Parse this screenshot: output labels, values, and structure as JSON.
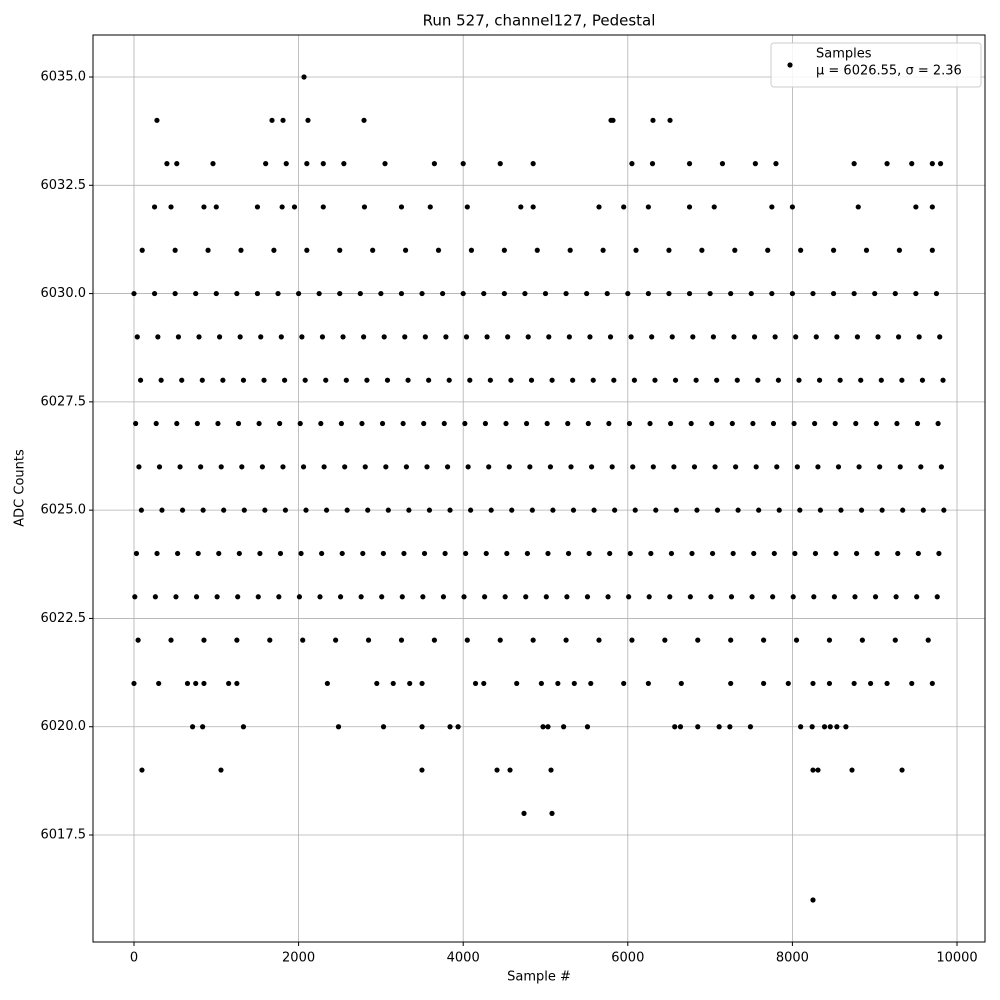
{
  "chart_data": {
    "type": "scatter",
    "title": "Run 527, channel127, Pedestal",
    "x_label": "Sample #",
    "y_label": "ADC Counts",
    "grid": true,
    "legend_position": "upper right",
    "legend_note": "μ = 6026.55, σ = 2.36",
    "xlim": [
      -498,
      10340
    ],
    "xticks": [
      0,
      2000,
      4000,
      6000,
      8000,
      10000
    ],
    "ylim": [
      6015.03,
      6035.97
    ],
    "yticks": [
      {
        "value": 6017.5,
        "label": "6017.5"
      },
      {
        "value": 6020,
        "label": "6020.0"
      },
      {
        "value": 6022.5,
        "label": "6022.5"
      },
      {
        "value": 6025,
        "label": "6025.0"
      },
      {
        "value": 6027.5,
        "label": "6027.5"
      },
      {
        "value": 6030,
        "label": "6030.0"
      },
      {
        "value": 6032.5,
        "label": "6032.5"
      },
      {
        "value": 6035,
        "label": "6035.0"
      }
    ],
    "x": [
      2066,
      279,
      1677,
      1811,
      2114,
      2795,
      5796,
      5820,
      6306,
      6513,
      400,
      520,
      960,
      1600,
      1850,
      2100,
      2300,
      2550,
      3050,
      3650,
      4000,
      4450,
      4850,
      6050,
      6300,
      6750,
      7150,
      7550,
      7800,
      8750,
      9150,
      9450,
      9700,
      9800,
      250,
      450,
      850,
      1000,
      1500,
      1800,
      1950,
      2300,
      2800,
      3250,
      3600,
      4050,
      4700,
      4850,
      5650,
      5950,
      6250,
      6750,
      7050,
      7750,
      8000,
      8800,
      9500,
      9700,
      100,
      500,
      900,
      1300,
      1700,
      2100,
      2500,
      2900,
      3300,
      3700,
      4100,
      4500,
      4900,
      5300,
      5700,
      6100,
      6500,
      6900,
      7300,
      7700,
      8100,
      8500,
      8900,
      9300,
      9700,
      0,
      250,
      500,
      750,
      1000,
      1250,
      1500,
      1750,
      2000,
      2250,
      2500,
      2750,
      3000,
      3250,
      3500,
      3750,
      4000,
      4250,
      4500,
      4750,
      5000,
      5250,
      5500,
      5750,
      6000,
      6250,
      6500,
      6750,
      7000,
      7250,
      7500,
      7750,
      8000,
      8250,
      8500,
      8750,
      9000,
      9250,
      9500,
      9750,
      40,
      290,
      540,
      790,
      1040,
      1290,
      1540,
      1790,
      2040,
      2290,
      2540,
      2790,
      3040,
      3290,
      3540,
      3790,
      4040,
      4290,
      4540,
      4790,
      5040,
      5290,
      5540,
      5790,
      6040,
      6290,
      6540,
      6790,
      7040,
      7290,
      7540,
      7790,
      8040,
      8290,
      8540,
      8790,
      9040,
      9290,
      9540,
      9790,
      80,
      330,
      580,
      830,
      1080,
      1330,
      1580,
      1830,
      2080,
      2330,
      2580,
      2830,
      3080,
      3330,
      3580,
      3830,
      4080,
      4330,
      4580,
      4830,
      5080,
      5330,
      5580,
      5830,
      6080,
      6330,
      6580,
      6830,
      7080,
      7330,
      7580,
      7830,
      8080,
      8330,
      8580,
      8830,
      9080,
      9330,
      9580,
      9830,
      20,
      270,
      520,
      770,
      1020,
      1270,
      1520,
      1770,
      2020,
      2270,
      2520,
      2770,
      3020,
      3270,
      3520,
      3770,
      4020,
      4270,
      4520,
      4770,
      5020,
      5270,
      5520,
      5770,
      6020,
      6270,
      6520,
      6770,
      7020,
      7270,
      7520,
      7770,
      8020,
      8270,
      8520,
      8770,
      9020,
      9270,
      9520,
      9770,
      60,
      310,
      560,
      810,
      1060,
      1310,
      1560,
      1810,
      2060,
      2310,
      2560,
      2810,
      3060,
      3310,
      3560,
      3810,
      4060,
      4310,
      4560,
      4810,
      5060,
      5310,
      5560,
      5810,
      6060,
      6310,
      6560,
      6810,
      7060,
      7310,
      7560,
      7810,
      8060,
      8310,
      8560,
      8810,
      9060,
      9310,
      9560,
      9810,
      90,
      340,
      590,
      840,
      1090,
      1340,
      1590,
      1840,
      2090,
      2340,
      2590,
      2840,
      3090,
      3340,
      3590,
      3840,
      4090,
      4340,
      4590,
      4840,
      5090,
      5340,
      5590,
      5840,
      6090,
      6340,
      6590,
      6840,
      7090,
      7340,
      7590,
      7840,
      8090,
      8340,
      8590,
      8840,
      9090,
      9340,
      9590,
      9840,
      30,
      280,
      530,
      780,
      1030,
      1280,
      1530,
      1780,
      2030,
      2280,
      2530,
      2780,
      3030,
      3280,
      3530,
      3780,
      4030,
      4280,
      4530,
      4780,
      5030,
      5280,
      5530,
      5780,
      6030,
      6280,
      6530,
      6780,
      7030,
      7280,
      7530,
      7780,
      8030,
      8280,
      8530,
      8780,
      9030,
      9280,
      9530,
      9780,
      10,
      260,
      510,
      760,
      1010,
      1260,
      1510,
      1760,
      2010,
      2260,
      2510,
      2760,
      3010,
      3260,
      3510,
      3760,
      4010,
      4260,
      4510,
      4760,
      5010,
      5260,
      5510,
      5760,
      6010,
      6260,
      6510,
      6760,
      7010,
      7260,
      7510,
      7760,
      8010,
      8260,
      8510,
      8760,
      9010,
      9260,
      9510,
      9760,
      50,
      450,
      850,
      1250,
      1650,
      2050,
      2450,
      2850,
      3250,
      3650,
      4050,
      4450,
      4850,
      5250,
      5650,
      6050,
      6450,
      6850,
      7250,
      7650,
      8050,
      8450,
      8850,
      9250,
      9650,
      0,
      300,
      650,
      750,
      850,
      1150,
      1250,
      2350,
      2950,
      3150,
      3350,
      3500,
      4150,
      4250,
      4650,
      4950,
      5150,
      5350,
      5550,
      5950,
      6250,
      6650,
      7250,
      7650,
      7950,
      8250,
      8450,
      8750,
      8950,
      9150,
      9450,
      9700,
      712,
      834,
      1330,
      2485,
      3032,
      3500,
      3840,
      3938,
      4970,
      5030,
      5220,
      5510,
      6570,
      6640,
      6850,
      7110,
      7240,
      7490,
      8100,
      8240,
      8390,
      8460,
      8540,
      8650,
      97,
      1057,
      3499,
      4411,
      4569,
      5067,
      8250,
      8311,
      8724,
      9332,
      4739,
      5079,
      8250
    ],
    "series": [
      {
        "name": "Samples",
        "color": "#000000",
        "values": [
          6035,
          6034,
          6034,
          6034,
          6034,
          6034,
          6034,
          6034,
          6034,
          6034,
          6033,
          6033,
          6033,
          6033,
          6033,
          6033,
          6033,
          6033,
          6033,
          6033,
          6033,
          6033,
          6033,
          6033,
          6033,
          6033,
          6033,
          6033,
          6033,
          6033,
          6033,
          6033,
          6033,
          6033,
          6032,
          6032,
          6032,
          6032,
          6032,
          6032,
          6032,
          6032,
          6032,
          6032,
          6032,
          6032,
          6032,
          6032,
          6032,
          6032,
          6032,
          6032,
          6032,
          6032,
          6032,
          6032,
          6032,
          6032,
          6031,
          6031,
          6031,
          6031,
          6031,
          6031,
          6031,
          6031,
          6031,
          6031,
          6031,
          6031,
          6031,
          6031,
          6031,
          6031,
          6031,
          6031,
          6031,
          6031,
          6031,
          6031,
          6031,
          6031,
          6031,
          6030,
          6030,
          6030,
          6030,
          6030,
          6030,
          6030,
          6030,
          6030,
          6030,
          6030,
          6030,
          6030,
          6030,
          6030,
          6030,
          6030,
          6030,
          6030,
          6030,
          6030,
          6030,
          6030,
          6030,
          6030,
          6030,
          6030,
          6030,
          6030,
          6030,
          6030,
          6030,
          6030,
          6030,
          6030,
          6030,
          6030,
          6030,
          6030,
          6030,
          6029,
          6029,
          6029,
          6029,
          6029,
          6029,
          6029,
          6029,
          6029,
          6029,
          6029,
          6029,
          6029,
          6029,
          6029,
          6029,
          6029,
          6029,
          6029,
          6029,
          6029,
          6029,
          6029,
          6029,
          6029,
          6029,
          6029,
          6029,
          6029,
          6029,
          6029,
          6029,
          6029,
          6029,
          6029,
          6029,
          6029,
          6029,
          6029,
          6029,
          6028,
          6028,
          6028,
          6028,
          6028,
          6028,
          6028,
          6028,
          6028,
          6028,
          6028,
          6028,
          6028,
          6028,
          6028,
          6028,
          6028,
          6028,
          6028,
          6028,
          6028,
          6028,
          6028,
          6028,
          6028,
          6028,
          6028,
          6028,
          6028,
          6028,
          6028,
          6028,
          6028,
          6028,
          6028,
          6028,
          6028,
          6028,
          6028,
          6028,
          6027,
          6027,
          6027,
          6027,
          6027,
          6027,
          6027,
          6027,
          6027,
          6027,
          6027,
          6027,
          6027,
          6027,
          6027,
          6027,
          6027,
          6027,
          6027,
          6027,
          6027,
          6027,
          6027,
          6027,
          6027,
          6027,
          6027,
          6027,
          6027,
          6027,
          6027,
          6027,
          6027,
          6027,
          6027,
          6027,
          6027,
          6027,
          6027,
          6027,
          6026,
          6026,
          6026,
          6026,
          6026,
          6026,
          6026,
          6026,
          6026,
          6026,
          6026,
          6026,
          6026,
          6026,
          6026,
          6026,
          6026,
          6026,
          6026,
          6026,
          6026,
          6026,
          6026,
          6026,
          6026,
          6026,
          6026,
          6026,
          6026,
          6026,
          6026,
          6026,
          6026,
          6026,
          6026,
          6026,
          6026,
          6026,
          6026,
          6026,
          6025,
          6025,
          6025,
          6025,
          6025,
          6025,
          6025,
          6025,
          6025,
          6025,
          6025,
          6025,
          6025,
          6025,
          6025,
          6025,
          6025,
          6025,
          6025,
          6025,
          6025,
          6025,
          6025,
          6025,
          6025,
          6025,
          6025,
          6025,
          6025,
          6025,
          6025,
          6025,
          6025,
          6025,
          6025,
          6025,
          6025,
          6025,
          6025,
          6025,
          6024,
          6024,
          6024,
          6024,
          6024,
          6024,
          6024,
          6024,
          6024,
          6024,
          6024,
          6024,
          6024,
          6024,
          6024,
          6024,
          6024,
          6024,
          6024,
          6024,
          6024,
          6024,
          6024,
          6024,
          6024,
          6024,
          6024,
          6024,
          6024,
          6024,
          6024,
          6024,
          6024,
          6024,
          6024,
          6024,
          6024,
          6024,
          6024,
          6024,
          6023,
          6023,
          6023,
          6023,
          6023,
          6023,
          6023,
          6023,
          6023,
          6023,
          6023,
          6023,
          6023,
          6023,
          6023,
          6023,
          6023,
          6023,
          6023,
          6023,
          6023,
          6023,
          6023,
          6023,
          6023,
          6023,
          6023,
          6023,
          6023,
          6023,
          6023,
          6023,
          6023,
          6023,
          6023,
          6023,
          6023,
          6023,
          6023,
          6023,
          6022,
          6022,
          6022,
          6022,
          6022,
          6022,
          6022,
          6022,
          6022,
          6022,
          6022,
          6022,
          6022,
          6022,
          6022,
          6022,
          6022,
          6022,
          6022,
          6022,
          6022,
          6022,
          6022,
          6022,
          6022,
          6021,
          6021,
          6021,
          6021,
          6021,
          6021,
          6021,
          6021,
          6021,
          6021,
          6021,
          6021,
          6021,
          6021,
          6021,
          6021,
          6021,
          6021,
          6021,
          6021,
          6021,
          6021,
          6021,
          6021,
          6021,
          6021,
          6021,
          6021,
          6021,
          6021,
          6021,
          6021,
          6020,
          6020,
          6020,
          6020,
          6020,
          6020,
          6020,
          6020,
          6020,
          6020,
          6020,
          6020,
          6020,
          6020,
          6020,
          6020,
          6020,
          6020,
          6020,
          6020,
          6020,
          6020,
          6020,
          6020,
          6019,
          6019,
          6019,
          6019,
          6019,
          6019,
          6019,
          6019,
          6019,
          6019,
          6018,
          6018,
          6016
        ]
      }
    ]
  }
}
